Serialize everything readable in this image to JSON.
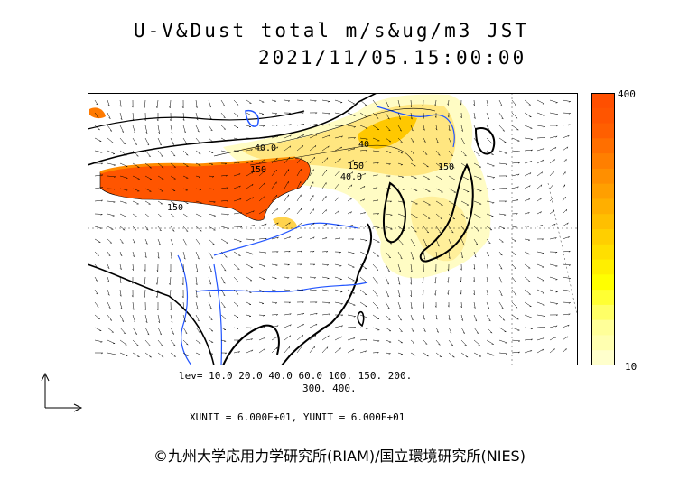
{
  "title": {
    "line1": "U-V&Dust total m/s&ug/m3 JST",
    "line2": "2021/11/05.15:00:00"
  },
  "colorbar": {
    "max_label": "400",
    "min_label": "10",
    "colors": [
      "#ffffcc",
      "#ffffb0",
      "#ffff99",
      "#ffff66",
      "#ffff33",
      "#ffff00",
      "#ffef00",
      "#ffdf00",
      "#ffcf00",
      "#ffbf00",
      "#ffaf00",
      "#ff9f00",
      "#ff8f00",
      "#ff7f00",
      "#ff6f00",
      "#ff5f00",
      "#ff5500",
      "#ff4f00"
    ]
  },
  "contour_levels": {
    "line1": "lev= 10.0 20.0 40.0 60.0 100. 150. 200.",
    "line2": "300. 400."
  },
  "contour_labels": [
    "40.0",
    "150",
    "150",
    "40.0",
    "150",
    "150",
    "40"
  ],
  "units": "XUNIT = 6.000E+01, YUNIT = 6.000E+01",
  "credit": "©九州大学応用力学研究所(RIAM)/国立環境研究所(NIES)"
}
